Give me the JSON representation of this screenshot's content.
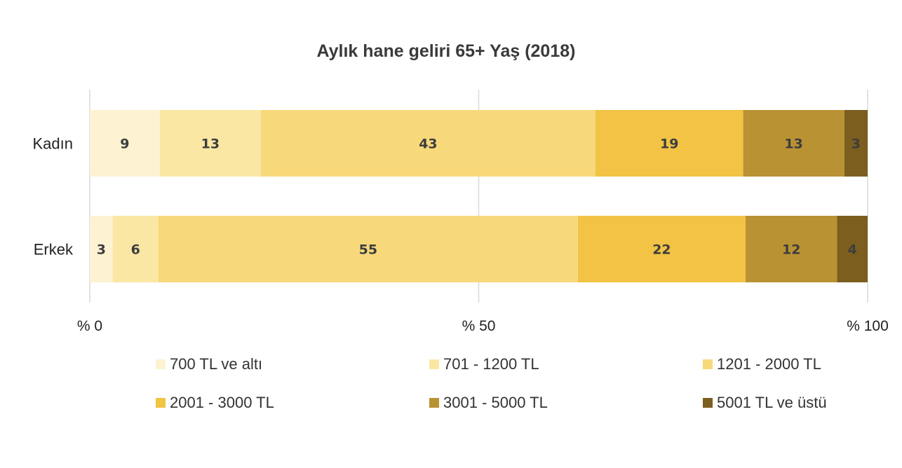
{
  "chart_data": {
    "type": "bar",
    "orientation": "horizontal",
    "stacked": true,
    "title": "Aylık hane geliri 65+ Yaş (2018)",
    "categories": [
      "Kadın",
      "Erkek"
    ],
    "series": [
      {
        "name": "700 TL ve altı",
        "values": [
          9,
          3
        ],
        "color": "#fdf2d2"
      },
      {
        "name": "701 - 1200 TL",
        "values": [
          13,
          6
        ],
        "color": "#fae7a4"
      },
      {
        "name": "1201 - 2000 TL",
        "values": [
          43,
          55
        ],
        "color": "#f7d97b"
      },
      {
        "name": "2001 - 3000 TL",
        "values": [
          19,
          22
        ],
        "color": "#f2c344"
      },
      {
        "name": "3001 - 5000 TL",
        "values": [
          13,
          12
        ],
        "color": "#b99234"
      },
      {
        "name": "5001 TL ve üstü",
        "values": [
          3,
          4
        ],
        "color": "#7c5e1f"
      }
    ],
    "xlim": [
      0,
      100
    ],
    "xticks": [
      0,
      50,
      100
    ],
    "xtick_labels": [
      "% 0",
      "% 50",
      "% 100"
    ],
    "grid": true,
    "legend_position": "bottom"
  }
}
